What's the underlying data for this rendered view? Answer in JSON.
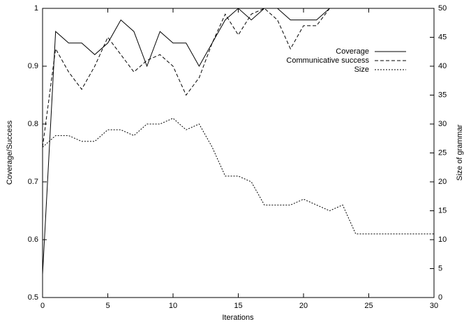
{
  "chart_data": {
    "type": "line",
    "xlabel": "Iterations",
    "ylabel": "Coverage/Success",
    "y2label": "Size of grammar",
    "x": [
      0,
      1,
      2,
      3,
      4,
      5,
      6,
      7,
      8,
      9,
      10,
      11,
      12,
      13,
      14,
      15,
      16,
      17,
      18,
      19,
      20,
      21,
      22,
      23,
      24,
      25,
      26,
      27,
      28,
      29,
      30
    ],
    "xlim": [
      0,
      30
    ],
    "xticks": [
      0,
      5,
      10,
      15,
      20,
      25,
      30
    ],
    "ylim": [
      0.5,
      1
    ],
    "yticks": [
      0.5,
      0.6,
      0.7,
      0.8,
      0.9,
      1
    ],
    "y2lim": [
      0,
      50
    ],
    "y2ticks": [
      0,
      5,
      10,
      15,
      20,
      25,
      30,
      35,
      40,
      45,
      50
    ],
    "legend": "top-right",
    "series": [
      {
        "name": "Coverage",
        "color": "#000000",
        "dash": "solid",
        "values": [
          0.54,
          0.96,
          0.94,
          0.94,
          0.92,
          0.94,
          0.98,
          0.96,
          0.9,
          0.96,
          0.94,
          0.94,
          0.9,
          0.94,
          0.98,
          1.0,
          0.98,
          1.0,
          1.0,
          0.98,
          0.98,
          0.98,
          1.0,
          1.0,
          1.0,
          1.0,
          1.0,
          1.0,
          1.0,
          1.0,
          1.0
        ]
      },
      {
        "name": "Communicative success",
        "color": "#000000",
        "dash": "dashed",
        "values": [
          0.76,
          0.93,
          0.89,
          0.86,
          0.9,
          0.95,
          0.92,
          0.89,
          0.91,
          0.92,
          0.9,
          0.85,
          0.88,
          0.94,
          0.99,
          0.954,
          0.99,
          1.0,
          0.98,
          0.93,
          0.97,
          0.97,
          1.0,
          1.0,
          1.0,
          1.0,
          1.0,
          1.0,
          1.0,
          1.0,
          1.0
        ]
      },
      {
        "name": "Size",
        "color": "#000000",
        "dash": "dotted",
        "axis": "y2",
        "values": [
          26,
          28,
          28,
          27,
          27,
          29,
          29,
          28,
          30,
          30,
          31,
          29,
          30,
          26,
          21,
          21,
          20,
          16,
          16,
          16,
          17,
          16,
          15,
          16,
          11,
          11,
          11,
          11,
          11,
          11,
          11
        ]
      }
    ]
  }
}
